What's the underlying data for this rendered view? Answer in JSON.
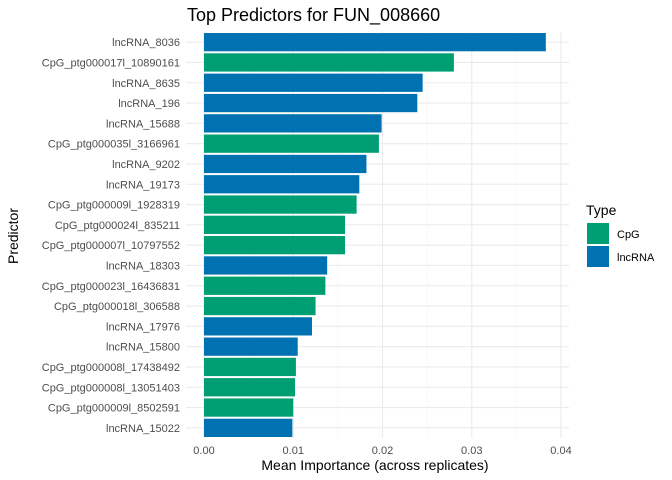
{
  "chart_data": {
    "type": "bar",
    "orientation": "horizontal",
    "title": "Top Predictors for FUN_008660",
    "xlabel": "Mean Importance (across replicates)",
    "ylabel": "Predictor",
    "xlim": [
      0,
      0.04
    ],
    "xticks": [
      "0.00",
      "0.01",
      "0.02",
      "0.03",
      "0.04"
    ],
    "xtick_values": [
      0,
      0.01,
      0.02,
      0.03,
      0.04
    ],
    "grid": true,
    "legend": {
      "title": "Type",
      "position": "right",
      "entries": [
        {
          "name": "CpG",
          "color": "#009E73"
        },
        {
          "name": "lncRNA",
          "color": "#0072B2"
        }
      ]
    },
    "bars": [
      {
        "label": "lncRNA_8036",
        "value": 0.0383,
        "type": "lncRNA"
      },
      {
        "label": "CpG_ptg000017l_10890161",
        "value": 0.028,
        "type": "CpG"
      },
      {
        "label": "lncRNA_8635",
        "value": 0.0245,
        "type": "lncRNA"
      },
      {
        "label": "lncRNA_196",
        "value": 0.0239,
        "type": "lncRNA"
      },
      {
        "label": "lncRNA_15688",
        "value": 0.0199,
        "type": "lncRNA"
      },
      {
        "label": "CpG_ptg000035l_3166961",
        "value": 0.0196,
        "type": "CpG"
      },
      {
        "label": "lncRNA_9202",
        "value": 0.0182,
        "type": "lncRNA"
      },
      {
        "label": "lncRNA_19173",
        "value": 0.0174,
        "type": "lncRNA"
      },
      {
        "label": "CpG_ptg000009l_1928319",
        "value": 0.0171,
        "type": "CpG"
      },
      {
        "label": "CpG_ptg000024l_835211",
        "value": 0.0158,
        "type": "CpG"
      },
      {
        "label": "CpG_ptg000007l_10797552",
        "value": 0.0158,
        "type": "CpG"
      },
      {
        "label": "lncRNA_18303",
        "value": 0.0138,
        "type": "lncRNA"
      },
      {
        "label": "CpG_ptg000023l_16436831",
        "value": 0.0136,
        "type": "CpG"
      },
      {
        "label": "CpG_ptg000018l_306588",
        "value": 0.0125,
        "type": "CpG"
      },
      {
        "label": "lncRNA_17976",
        "value": 0.0121,
        "type": "lncRNA"
      },
      {
        "label": "lncRNA_15800",
        "value": 0.0105,
        "type": "lncRNA"
      },
      {
        "label": "CpG_ptg000008l_17438492",
        "value": 0.0103,
        "type": "CpG"
      },
      {
        "label": "CpG_ptg000008l_13051403",
        "value": 0.0102,
        "type": "CpG"
      },
      {
        "label": "CpG_ptg000009l_8502591",
        "value": 0.01,
        "type": "CpG"
      },
      {
        "label": "lncRNA_15022",
        "value": 0.0099,
        "type": "lncRNA"
      }
    ]
  }
}
